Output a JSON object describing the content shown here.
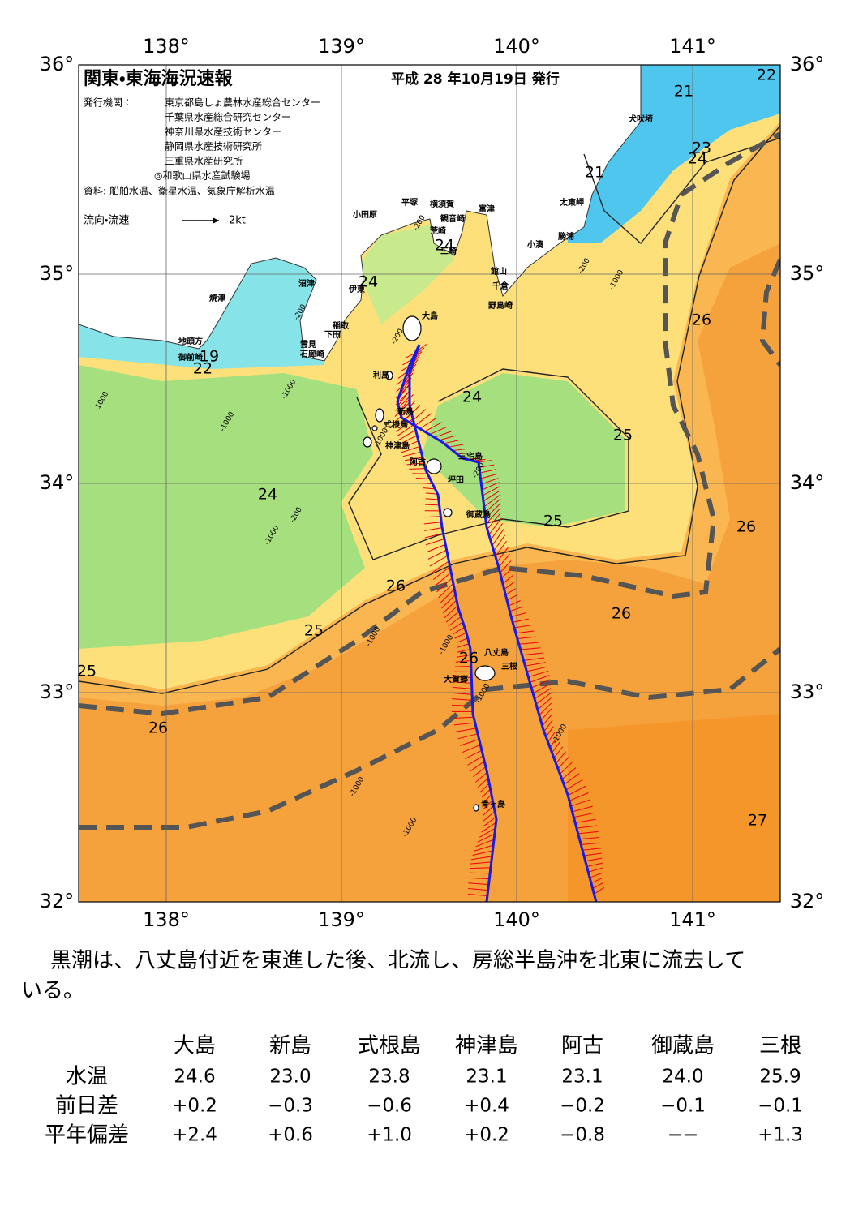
{
  "header": {
    "title": "関東・東海海況速報",
    "date": "平成 28 年10月19日 発行",
    "publisher_label": "発行機関：",
    "publishers": [
      "東京都島しょ農林水産総合センター",
      "千葉県水産総合研究センター",
      "神奈川県水産技術センター",
      "静岡県水産技術研究所",
      "三重県水産研究所",
      "◎和歌山県水産試験場"
    ],
    "source": "資料: 船舶水温、衛星水温、気象庁解析水温",
    "flow_label": "流向・流速",
    "flow_scale": "2kt"
  },
  "map": {
    "lon_labels": [
      "138°",
      "139°",
      "140°",
      "141°"
    ],
    "lat_labels": [
      "36°",
      "35°",
      "34°",
      "33°",
      "32°"
    ],
    "places": [
      "小田原",
      "平塚",
      "横須賀",
      "観音崎",
      "富津",
      "荒崎",
      "三崎",
      "館山",
      "千倉",
      "野島崎",
      "小湊",
      "勝浦",
      "太東岬",
      "犬吠埼",
      "沼津",
      "伊東",
      "焼津",
      "稲取",
      "下田",
      "雲見",
      "石廊崎",
      "地頭方",
      "御前崎",
      "大島",
      "利島",
      "新島",
      "式根島",
      "神津島",
      "三宅島",
      "阿古",
      "坪田",
      "御蔵島",
      "八丈島",
      "三根",
      "大賀郷",
      "青ヶ島"
    ],
    "isotherm_labels": [
      "21",
      "22",
      "21",
      "23",
      "24",
      "24",
      "24",
      "26",
      "19",
      "22",
      "24",
      "25",
      "24",
      "26",
      "25",
      "26",
      "26",
      "25",
      "26",
      "25",
      "26",
      "27"
    ],
    "depth_labels": [
      "-200",
      "-200",
      "-200",
      "-200",
      "-200",
      "-200",
      "-1000",
      "-1000",
      "-1000",
      "-1000",
      "-1000",
      "-1000",
      "-1000",
      "-1000",
      "-1000",
      "-1000",
      "-1000",
      "-1000"
    ]
  },
  "description": [
    "黒潮は、八丈島付近を東進した後、北流し、房総半島沖を北東に流去して",
    "いる。"
  ],
  "table": {
    "columns": [
      "大島",
      "新島",
      "式根島",
      "神津島",
      "阿古",
      "御蔵島",
      "三根"
    ],
    "rows": [
      {
        "label": "水温",
        "cells": [
          "24.6",
          "23.0",
          "23.8",
          "23.1",
          "23.1",
          "24.0",
          "25.9"
        ]
      },
      {
        "label": "前日差",
        "cells": [
          "+0.2",
          "−0.3",
          "−0.6",
          "+0.4",
          "−0.2",
          "−0.1",
          "−0.1"
        ]
      },
      {
        "label": "平年偏差",
        "cells": [
          "+2.4",
          "+0.6",
          "+1.0",
          "+0.2",
          "−0.8",
          "−−",
          "+1.3"
        ]
      }
    ]
  }
}
